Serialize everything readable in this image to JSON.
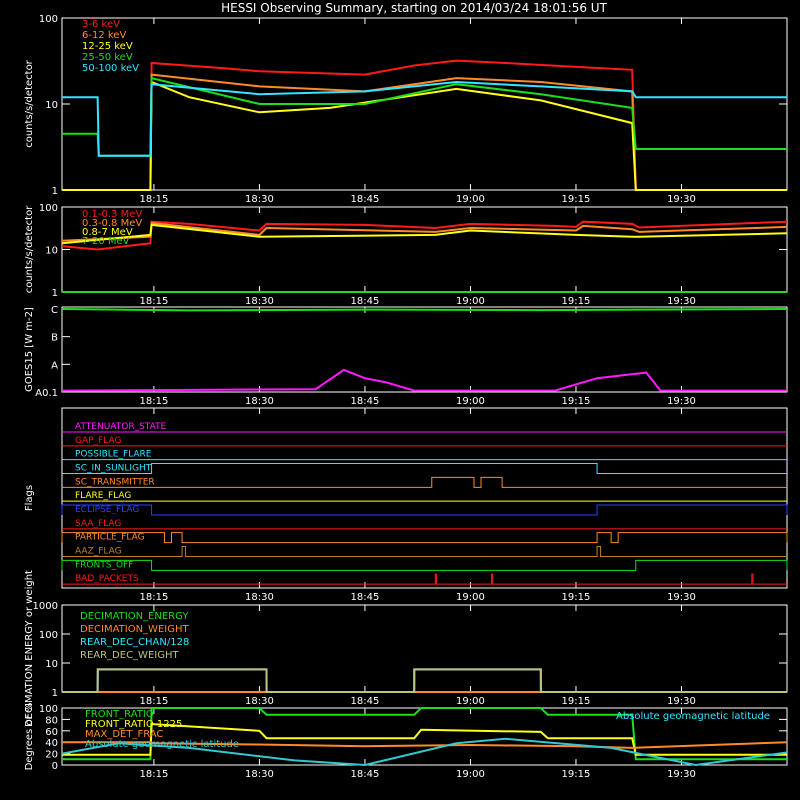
{
  "title": "HESSI Observing Summary, starting on 2014/03/24 18:01:56 UT",
  "time_axis": {
    "start": "18:01:56",
    "end": "19:45:00",
    "ticks": [
      "18:15",
      "18:30",
      "18:45",
      "19:00",
      "19:15",
      "19:30"
    ]
  },
  "chart_data": [
    {
      "type": "line",
      "id": "lowE",
      "ylabel": "counts/s/detector",
      "yscale": "log",
      "ylim": [
        1,
        100
      ],
      "ytick_labels": [
        "1",
        "10",
        "100"
      ],
      "legend_placement": "top-left",
      "series": [
        {
          "name": "3-6 keV",
          "color": "#ff1a1a",
          "values": [
            [
              "18:01:56",
              1
            ],
            [
              "18:14:30",
              1
            ],
            [
              "18:14:40",
              30
            ],
            [
              "18:25",
              26
            ],
            [
              "18:30",
              24
            ],
            [
              "18:45",
              22
            ],
            [
              "18:52",
              28
            ],
            [
              "18:58",
              32
            ],
            [
              "19:05",
              30
            ],
            [
              "19:15",
              27
            ],
            [
              "19:23",
              25
            ],
            [
              "19:23:30",
              1
            ],
            [
              "19:45",
              1
            ]
          ]
        },
        {
          "name": "6-12 keV",
          "color": "#ff8a2a",
          "values": [
            [
              "18:01:56",
              1
            ],
            [
              "18:14:30",
              1
            ],
            [
              "18:14:40",
              22
            ],
            [
              "18:30",
              16
            ],
            [
              "18:45",
              14
            ],
            [
              "18:58",
              20
            ],
            [
              "19:10",
              18
            ],
            [
              "19:23",
              14
            ],
            [
              "19:23:30",
              1
            ],
            [
              "19:45",
              1
            ]
          ]
        },
        {
          "name": "12-25 keV",
          "color": "#ffff1a",
          "values": [
            [
              "18:01:56",
              1
            ],
            [
              "18:14:30",
              1
            ],
            [
              "18:14:40",
              18
            ],
            [
              "18:20",
              12
            ],
            [
              "18:30",
              8
            ],
            [
              "18:40",
              9
            ],
            [
              "18:58",
              15
            ],
            [
              "19:10",
              11
            ],
            [
              "19:23",
              6
            ],
            [
              "19:23:30",
              1
            ],
            [
              "19:45",
              1
            ]
          ]
        },
        {
          "name": "25-50 keV",
          "color": "#1adf1a",
          "values": [
            [
              "18:01:56",
              4.5
            ],
            [
              "18:07",
              4.5
            ],
            [
              "18:07:10",
              2.5
            ],
            [
              "18:14:30",
              2.5
            ],
            [
              "18:14:40",
              20
            ],
            [
              "18:30",
              10
            ],
            [
              "18:45",
              10
            ],
            [
              "18:58",
              17
            ],
            [
              "19:10",
              13
            ],
            [
              "19:23",
              9
            ],
            [
              "19:23:30",
              3
            ],
            [
              "19:45",
              3
            ]
          ]
        },
        {
          "name": "50-100 keV",
          "color": "#33e6ff",
          "values": [
            [
              "18:01:56",
              12
            ],
            [
              "18:07",
              12
            ],
            [
              "18:07:10",
              2.5
            ],
            [
              "18:14:30",
              2.5
            ],
            [
              "18:14:40",
              17
            ],
            [
              "18:30",
              13
            ],
            [
              "18:45",
              14
            ],
            [
              "18:58",
              18
            ],
            [
              "19:10",
              16
            ],
            [
              "19:23",
              14
            ],
            [
              "19:23:30",
              12
            ],
            [
              "19:45",
              12
            ]
          ]
        }
      ]
    },
    {
      "type": "line",
      "id": "highE",
      "ylabel": "counts/s/detector",
      "yscale": "log",
      "ylim": [
        1,
        100
      ],
      "ytick_labels": [
        "1",
        "10",
        "100"
      ],
      "legend_placement": "top-left",
      "series": [
        {
          "name": "0.1-0.3 MeV",
          "color": "#ff1a1a",
          "values": [
            [
              "18:01:56",
              12
            ],
            [
              "18:07",
              10
            ],
            [
              "18:14:30",
              14
            ],
            [
              "18:14:40",
              45
            ],
            [
              "18:20",
              40
            ],
            [
              "18:30",
              28
            ],
            [
              "18:31",
              40
            ],
            [
              "18:45",
              38
            ],
            [
              "18:55",
              32
            ],
            [
              "19:00",
              40
            ],
            [
              "19:12",
              36
            ],
            [
              "19:15",
              34
            ],
            [
              "19:16",
              45
            ],
            [
              "19:23",
              40
            ],
            [
              "19:24",
              33
            ],
            [
              "19:45",
              45
            ]
          ]
        },
        {
          "name": "0.3-0.8 MeV",
          "color": "#ff8a2a",
          "values": [
            [
              "18:01:56",
              16
            ],
            [
              "18:14:30",
              20
            ],
            [
              "18:14:40",
              42
            ],
            [
              "18:30",
              22
            ],
            [
              "18:31",
              32
            ],
            [
              "18:55",
              26
            ],
            [
              "19:00",
              32
            ],
            [
              "19:15",
              28
            ],
            [
              "19:16",
              36
            ],
            [
              "19:23",
              30
            ],
            [
              "19:24",
              26
            ],
            [
              "19:45",
              34
            ]
          ]
        },
        {
          "name": "0.8-7 MeV",
          "color": "#ffff1a",
          "values": [
            [
              "18:01:56",
              14
            ],
            [
              "18:14:30",
              22
            ],
            [
              "18:14:40",
              38
            ],
            [
              "18:30",
              20
            ],
            [
              "18:55",
              22
            ],
            [
              "19:00",
              28
            ],
            [
              "19:15",
              22
            ],
            [
              "19:23",
              20
            ],
            [
              "19:24",
              20
            ],
            [
              "19:45",
              24
            ]
          ]
        },
        {
          "name": "7-20 MeV",
          "color": "#1adf1a",
          "values": [
            [
              "18:01:56",
              1
            ],
            [
              "19:45",
              1
            ]
          ]
        }
      ]
    },
    {
      "type": "line",
      "id": "goes",
      "ylabel": "GOES15 [W m-2]",
      "ylim_labels": [
        "A0.1",
        "A",
        "B",
        "C"
      ],
      "series": [
        {
          "name": "GOES long",
          "color": "#1adf1a",
          "values": [
            [
              "18:01:56",
              3.0
            ],
            [
              "18:20",
              2.95
            ],
            [
              "18:45",
              2.98
            ],
            [
              "19:10",
              2.96
            ],
            [
              "19:45",
              3.0
            ]
          ]
        },
        {
          "name": "GOES short",
          "color": "#ff1aff",
          "values": [
            [
              "18:01:56",
              0.05
            ],
            [
              "18:38",
              0.1
            ],
            [
              "18:42",
              0.8
            ],
            [
              "18:45",
              0.5
            ],
            [
              "18:48",
              0.35
            ],
            [
              "18:52",
              0.05
            ],
            [
              "19:12",
              0.05
            ],
            [
              "19:18",
              0.5
            ],
            [
              "19:25",
              0.7
            ],
            [
              "19:27",
              0.05
            ],
            [
              "19:45",
              0.05
            ]
          ]
        }
      ]
    },
    {
      "type": "step",
      "id": "flags",
      "ylabel": "Flags",
      "flags": [
        {
          "name": "ATTENUATOR_STATE",
          "color": "#ff1aff",
          "segments": []
        },
        {
          "name": "GAP_FLAG",
          "color": "#ff1a1a",
          "segments": []
        },
        {
          "name": "POSSIBLE_FLARE",
          "color": "#33e6ff",
          "segments": []
        },
        {
          "name": "SC_IN_SUNLIGHT",
          "color": "#33e6ff",
          "segments": [
            [
              "18:14:40",
              "19:18:00"
            ]
          ]
        },
        {
          "name": "SC_TRANSMITTER",
          "color": "#ff8a2a",
          "segments": [
            [
              "18:54:30",
              "19:00:30"
            ],
            [
              "19:01:30",
              "19:04:30"
            ]
          ]
        },
        {
          "name": "FLARE_FLAG",
          "color": "#ffff1a",
          "segments": []
        },
        {
          "name": "ECLIPSE_FLAG",
          "color": "#2a40ff",
          "segments": [
            [
              "18:01:56",
              "18:14:40"
            ],
            [
              "19:18:00",
              "19:45:00"
            ]
          ]
        },
        {
          "name": "SAA_FLAG",
          "color": "#ff1a1a",
          "segments": []
        },
        {
          "name": "PARTICLE_FLAG",
          "color": "#ff8a2a",
          "segments": [
            [
              "18:01:56",
              "18:16:30"
            ],
            [
              "18:17:30",
              "18:19:00"
            ],
            [
              "19:18:00",
              "19:20:00"
            ],
            [
              "19:21:00",
              "19:45:00"
            ]
          ]
        },
        {
          "name": "AAZ_FLAG",
          "color": "#c08020",
          "segments": [
            [
              "18:19:00",
              "18:19:30"
            ],
            [
              "19:18:00",
              "19:18:30"
            ]
          ]
        },
        {
          "name": "FRONTS_OFF",
          "color": "#1adf1a",
          "segments": [
            [
              "18:01:56",
              "18:14:40"
            ],
            [
              "19:23:30",
              "19:45:00"
            ]
          ]
        },
        {
          "name": "BAD_PACKETS",
          "color": "#ff1a1a",
          "segments": [
            [
              "18:55:00",
              "18:55:10"
            ],
            [
              "19:03:00",
              "19:03:10"
            ],
            [
              "19:40:00",
              "19:40:10"
            ]
          ]
        }
      ]
    },
    {
      "type": "step",
      "id": "decim",
      "ylabel": "DECIMATION ENERGY or weight",
      "yscale": "log",
      "ylim": [
        1,
        1000
      ],
      "ytick_labels": [
        "1",
        "10",
        "100",
        "1000"
      ],
      "series": [
        {
          "name": "DECIMATION_ENERGY",
          "color": "#1adf1a",
          "values": [
            [
              "18:01:56",
              1
            ],
            [
              "19:45",
              1
            ]
          ]
        },
        {
          "name": "DECIMATION_WEIGHT",
          "color": "#ff8a2a",
          "values": [
            [
              "18:01:56",
              1
            ],
            [
              "19:45",
              1
            ]
          ]
        },
        {
          "name": "REAR_DEC_CHAN/128",
          "color": "#33e6ff",
          "values": [
            [
              "18:01:56",
              1
            ],
            [
              "18:07",
              1
            ],
            [
              "18:07:01",
              6
            ],
            [
              "18:31",
              6
            ],
            [
              "18:31:01",
              1
            ],
            [
              "18:52",
              1
            ],
            [
              "18:52:01",
              6
            ],
            [
              "19:10",
              6
            ],
            [
              "19:10:01",
              1
            ],
            [
              "19:45",
              1
            ]
          ]
        },
        {
          "name": "REAR_DEC_WEIGHT",
          "color": "#c0c080",
          "values": [
            [
              "18:01:56",
              1
            ],
            [
              "18:07",
              1
            ],
            [
              "18:07:01",
              6
            ],
            [
              "18:31",
              6
            ],
            [
              "18:31:01",
              1
            ],
            [
              "18:52",
              1
            ],
            [
              "18:52:01",
              6
            ],
            [
              "19:10",
              6
            ],
            [
              "19:10:01",
              1
            ],
            [
              "19:45",
              1
            ]
          ]
        }
      ]
    },
    {
      "type": "line",
      "id": "pct",
      "ylabel": "Degrees or %",
      "ylim": [
        0,
        100
      ],
      "ytick_labels": [
        "0",
        "20",
        "40",
        "60",
        "80",
        "100"
      ],
      "legend_placement": "top-left",
      "annotation": "Absolute geomagnetic latitude",
      "series": [
        {
          "name": "FRONT_RATIO",
          "color": "#1adf1a",
          "values": [
            [
              "18:01:56",
              10
            ],
            [
              "18:14:30",
              10
            ],
            [
              "18:14:40",
              100
            ],
            [
              "18:30",
              100
            ],
            [
              "18:31",
              88
            ],
            [
              "18:52",
              88
            ],
            [
              "18:53",
              100
            ],
            [
              "19:10",
              100
            ],
            [
              "19:11",
              88
            ],
            [
              "19:23",
              88
            ],
            [
              "19:23:30",
              10
            ],
            [
              "19:45",
              10
            ]
          ]
        },
        {
          "name": "FRONT_RATIO 1225",
          "color": "#ffff1a",
          "values": [
            [
              "18:01:56",
              18
            ],
            [
              "18:14:30",
              18
            ],
            [
              "18:14:40",
              72
            ],
            [
              "18:30",
              60
            ],
            [
              "18:31",
              47
            ],
            [
              "18:52",
              47
            ],
            [
              "18:53",
              62
            ],
            [
              "19:10",
              58
            ],
            [
              "19:11",
              47
            ],
            [
              "19:23",
              47
            ],
            [
              "19:23:30",
              18
            ],
            [
              "19:45",
              18
            ]
          ]
        },
        {
          "name": "MAX_DET_FRAC",
          "color": "#ff8a2a",
          "values": [
            [
              "18:01:56",
              40
            ],
            [
              "18:14:30",
              40
            ],
            [
              "18:15",
              38
            ],
            [
              "18:30",
              36
            ],
            [
              "18:45",
              33
            ],
            [
              "19:00",
              35
            ],
            [
              "19:15",
              33
            ],
            [
              "19:23",
              30
            ],
            [
              "19:45",
              40
            ]
          ]
        },
        {
          "name": "Absolute geomagnetic latitude",
          "color": "#33c8d0",
          "values": [
            [
              "18:01:56",
              20
            ],
            [
              "18:10",
              38
            ],
            [
              "18:20",
              30
            ],
            [
              "18:35",
              8
            ],
            [
              "18:45",
              0
            ],
            [
              "18:58",
              38
            ],
            [
              "19:05",
              46
            ],
            [
              "19:20",
              30
            ],
            [
              "19:32",
              0
            ],
            [
              "19:45",
              22
            ]
          ]
        }
      ]
    }
  ]
}
